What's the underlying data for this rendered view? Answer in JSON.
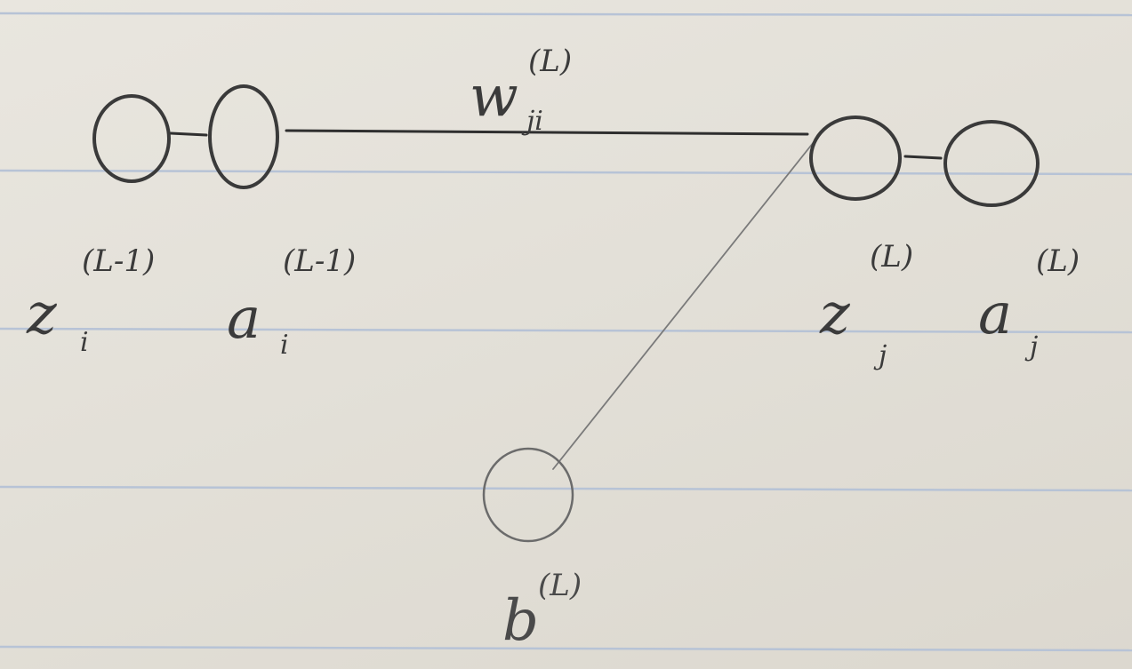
{
  "diagram": {
    "nodes": [
      {
        "id": "z_prev"
      },
      {
        "id": "a_prev"
      },
      {
        "id": "z_curr"
      },
      {
        "id": "a_curr"
      },
      {
        "id": "bias"
      }
    ],
    "edges": [
      {
        "from": "z_prev",
        "to": "a_prev"
      },
      {
        "from": "a_prev",
        "to": "z_curr",
        "label": "weight"
      },
      {
        "from": "z_curr",
        "to": "a_curr"
      },
      {
        "from": "bias",
        "to": "z_curr"
      }
    ],
    "weight": {
      "base": "w",
      "sub": "ji",
      "sup": "(L)"
    },
    "labels": {
      "z_prev": {
        "base": "z",
        "sub": "i",
        "sup": "(L-1)"
      },
      "a_prev": {
        "base": "a",
        "sub": "i",
        "sup": "(L-1)"
      },
      "z_curr": {
        "base": "z",
        "sub": "j",
        "sup": "(L)"
      },
      "a_curr": {
        "base": "a",
        "sub": "j",
        "sup": "(L)"
      },
      "bias": {
        "base": "b",
        "sup": "(L)"
      }
    }
  },
  "colors": {
    "paper": "#e4e1d9",
    "rule_lines": "#b7c3d6",
    "pencil": "#3a3a3a"
  }
}
